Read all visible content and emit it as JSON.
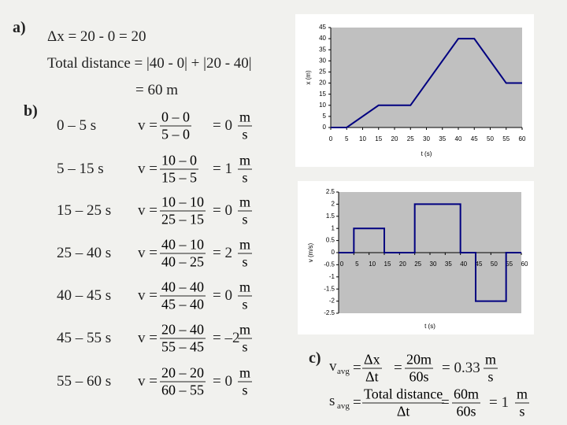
{
  "part_a": {
    "label": "a)",
    "displacement": "Δx = 20 - 0 = 20",
    "total_distance": "Total distance = |40 - 0| + |20 - 40|",
    "result": "= 60 m"
  },
  "part_b": {
    "label": "b)",
    "rows": [
      {
        "interval": "0 – 5 s",
        "lhs": "v =",
        "num": "0 – 0",
        "den": "5 – 0",
        "result": "= 0",
        "unit_num": "m",
        "unit_den": "s"
      },
      {
        "interval": "5 – 15 s",
        "lhs": "v =",
        "num": "10 – 0",
        "den": "15 – 5",
        "result": "= 1",
        "unit_num": "m",
        "unit_den": "s"
      },
      {
        "interval": "15 – 25 s",
        "lhs": "v =",
        "num": "10 – 10",
        "den": "25 – 15",
        "result": "= 0",
        "unit_num": "m",
        "unit_den": "s"
      },
      {
        "interval": "25 – 40 s",
        "lhs": "v =",
        "num": "40 – 10",
        "den": "40 – 25",
        "result": "= 2",
        "unit_num": "m",
        "unit_den": "s"
      },
      {
        "interval": "40 – 45 s",
        "lhs": "v =",
        "num": "40 – 40",
        "den": "45 – 40",
        "result": "= 0",
        "unit_num": "m",
        "unit_den": "s"
      },
      {
        "interval": "45 – 55 s",
        "lhs": "v =",
        "num": "20 – 40",
        "den": "55 – 45",
        "result": "= –2",
        "unit_num": "m",
        "unit_den": "s"
      },
      {
        "interval": "55 – 60 s",
        "lhs": "v =",
        "num": "20 – 20",
        "den": "60 – 55",
        "result": "= 0",
        "unit_num": "m",
        "unit_den": "s"
      }
    ]
  },
  "part_c": {
    "label": "c)",
    "rows": [
      {
        "sym": "v",
        "sub": "avg",
        "eq1": "=",
        "n1": "Δx",
        "d1": "Δt",
        "eq2": "=",
        "n2": "20m",
        "d2": "60s",
        "result": "= 0.33",
        "unit_num": "m",
        "unit_den": "s"
      },
      {
        "sym": "s",
        "sub": "avg",
        "eq1": "=",
        "n1": "Total distance",
        "d1": "Δt",
        "eq2": "=",
        "n2": "60m",
        "d2": "60s",
        "result": "= 1",
        "unit_num": "m",
        "unit_den": "s"
      }
    ]
  },
  "chart_data": [
    {
      "type": "line",
      "x": [
        0,
        5,
        15,
        25,
        40,
        45,
        55,
        60
      ],
      "series": [
        {
          "name": "x",
          "color": "#000080",
          "values": [
            0,
            0,
            10,
            10,
            40,
            40,
            20,
            20
          ]
        }
      ],
      "xlim": [
        0,
        60
      ],
      "ylim": [
        0,
        45
      ],
      "xticks": [
        0,
        5,
        10,
        15,
        20,
        25,
        30,
        35,
        40,
        45,
        50,
        55,
        60
      ],
      "yticks": [
        0,
        5,
        10,
        15,
        20,
        25,
        30,
        35,
        40,
        45
      ],
      "xlabel": "t (s)",
      "ylabel": "x (m)",
      "x_axis_position": "bottom"
    },
    {
      "type": "line",
      "x": [
        0,
        5,
        5,
        15,
        15,
        25,
        25,
        40,
        40,
        45,
        45,
        55,
        55,
        60
      ],
      "series": [
        {
          "name": "v",
          "color": "#000080",
          "values": [
            0,
            0,
            1,
            1,
            0,
            0,
            2,
            2,
            0,
            0,
            -2,
            -2,
            0,
            0
          ]
        }
      ],
      "xlim": [
        0,
        60
      ],
      "ylim": [
        -2.5,
        2.5
      ],
      "xticks": [
        0,
        5,
        10,
        15,
        20,
        25,
        30,
        35,
        40,
        45,
        50,
        55,
        60
      ],
      "yticks": [
        2.5,
        2,
        1.5,
        1,
        0.5,
        0,
        -0.5,
        -1,
        -1.5,
        -2,
        -2.5
      ],
      "xlabel": "t (s)",
      "ylabel": "v (m/s)",
      "x_axis_position": "zero"
    }
  ]
}
